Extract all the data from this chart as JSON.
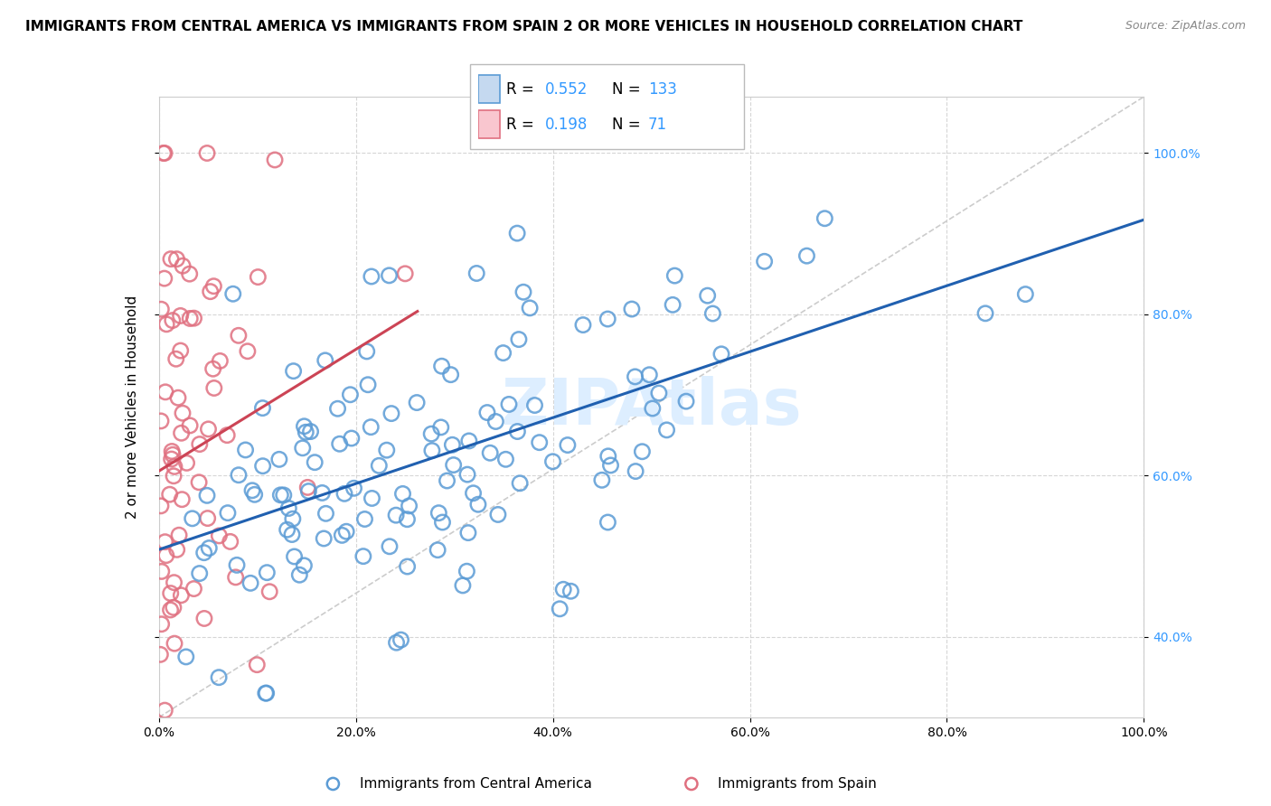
{
  "title": "IMMIGRANTS FROM CENTRAL AMERICA VS IMMIGRANTS FROM SPAIN 2 OR MORE VEHICLES IN HOUSEHOLD CORRELATION CHART",
  "source": "Source: ZipAtlas.com",
  "ylabel": "2 or more Vehicles in Household",
  "R1": 0.552,
  "N1": 133,
  "R2": 0.198,
  "N2": 71,
  "color1_edge": "#5b9bd5",
  "color2_edge": "#e07080",
  "trend1_color": "#2060b0",
  "trend2_color": "#cc4455",
  "ref_line_color": "#cccccc",
  "grid_color": "#cccccc",
  "label1": "Immigrants from Central America",
  "label2": "Immigrants from Spain",
  "watermark": "ZIPAtlas",
  "legend_value_color": "#3399ff",
  "title_fontsize": 11,
  "axis_label_fontsize": 11,
  "tick_fontsize": 10,
  "legend_fontsize": 12,
  "watermark_fontsize": 52,
  "watermark_color": "#ddeeff",
  "xlim": [
    0,
    100
  ],
  "ylim": [
    30,
    107
  ],
  "xticks": [
    0,
    20,
    40,
    60,
    80,
    100
  ],
  "yticks": [
    40,
    60,
    80,
    100
  ],
  "seed1": 42,
  "seed2": 77
}
